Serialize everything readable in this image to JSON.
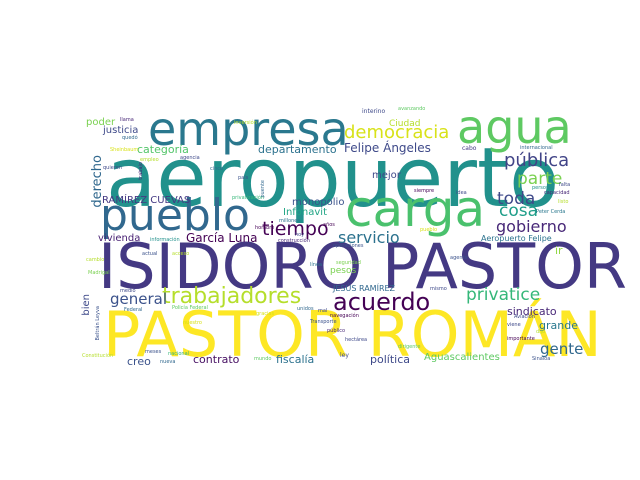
{
  "words": [
    {
      "text": "aeropuerto",
      "color": "#21918c"
    },
    {
      "text": "ISIDORO PASTOR",
      "color": "#443983"
    },
    {
      "text": "PASTOR ROMÁN",
      "color": "#fde725"
    },
    {
      "text": "empresa",
      "color": "#2a788e"
    },
    {
      "text": "agua",
      "color": "#5ec962"
    },
    {
      "text": "carga",
      "color": "#4ac16d"
    },
    {
      "text": "pueblo",
      "color": "#31688e"
    },
    {
      "text": "trabajadores",
      "color": "#b5de2b"
    },
    {
      "text": "acuerdo",
      "color": "#440154"
    },
    {
      "text": "democracia",
      "color": "#d8e219"
    },
    {
      "text": "privatice",
      "color": "#35b779"
    },
    {
      "text": "tiempo",
      "color": "#440154"
    },
    {
      "text": "pública",
      "color": "#414487"
    },
    {
      "text": "parte",
      "color": "#7ad151"
    },
    {
      "text": "toda",
      "color": "#3e4989"
    },
    {
      "text": "cosa",
      "color": "#1f9e89"
    },
    {
      "text": "gobierno",
      "color": "#482878"
    },
    {
      "text": "servicio",
      "color": "#2c728e"
    },
    {
      "text": "general",
      "color": "#3b528b"
    },
    {
      "text": "gente",
      "color": "#31688e"
    },
    {
      "text": "García Luna",
      "color": "#440154"
    },
    {
      "text": "Felipe Ángeles",
      "color": "#3e4989"
    },
    {
      "text": "departamento",
      "color": "#2c728e"
    },
    {
      "text": "categoría",
      "color": "#52c569"
    },
    {
      "text": "justicia",
      "color": "#3e4989"
    },
    {
      "text": "poder",
      "color": "#7ad151"
    },
    {
      "text": "derecho",
      "color": "#31688e"
    },
    {
      "text": "RAMÍREZ CUEVAS",
      "color": "#443983"
    },
    {
      "text": "vivienda",
      "color": "#482173"
    },
    {
      "text": "Infonavit",
      "color": "#21a585"
    },
    {
      "text": "monopolio",
      "color": "#3b528b"
    },
    {
      "text": "mejor",
      "color": "#3e4989"
    },
    {
      "text": "Ciudad",
      "color": "#b5de2b"
    },
    {
      "text": "sindicato",
      "color": "#482878"
    },
    {
      "text": "grande",
      "color": "#2a788e"
    },
    {
      "text": "ir",
      "color": "#90d743"
    },
    {
      "text": "contrato",
      "color": "#471063"
    },
    {
      "text": "fiscalía",
      "color": "#2c728e"
    },
    {
      "text": "política",
      "color": "#3e4989"
    },
    {
      "text": "Aguascalientes",
      "color": "#5ec962"
    },
    {
      "text": "creo",
      "color": "#3b528b"
    },
    {
      "text": "pesos",
      "color": "#7ad151"
    },
    {
      "text": "JESÚS RAMÍREZ",
      "color": "#31688e"
    },
    {
      "text": "bien",
      "color": "#3e4989"
    },
    {
      "text": "Aeropuerto Felipe",
      "color": "#2c728e"
    },
    {
      "text": "avanzando",
      "color": "#5ec962"
    },
    {
      "text": "interino",
      "color": "#3e4989"
    },
    {
      "text": "cabo",
      "color": "#443983"
    },
    {
      "text": "internacional",
      "color": "#31688e"
    },
    {
      "text": "llama",
      "color": "#482878"
    },
    {
      "text": "quedó",
      "color": "#31688e"
    },
    {
      "text": "agencia",
      "color": "#3e4989"
    },
    {
      "text": "siempre",
      "color": "#440154"
    },
    {
      "text": "persona",
      "color": "#21918c"
    },
    {
      "text": "falta",
      "color": "#3e4989"
    },
    {
      "text": "capacidad",
      "color": "#482878"
    },
    {
      "text": "Peter Cerda",
      "color": "#2a788e"
    },
    {
      "text": "listo",
      "color": "#b5de2b"
    },
    {
      "text": "hombre",
      "color": "#440154"
    },
    {
      "text": "construcción",
      "color": "#482878"
    },
    {
      "text": "millones",
      "color": "#2c728e"
    },
    {
      "text": "operaciones",
      "color": "#3b528b"
    },
    {
      "text": "información",
      "color": "#21918c"
    },
    {
      "text": "actual",
      "color": "#3b528b"
    },
    {
      "text": "seguridad",
      "color": "#7ad151"
    },
    {
      "text": "mismo",
      "color": "#3e4989"
    },
    {
      "text": "agente",
      "color": "#3b528b"
    },
    {
      "text": "Aviación",
      "color": "#3e4989"
    },
    {
      "text": "dijo",
      "color": "#b5de2b"
    },
    {
      "text": "viene",
      "color": "#3e4989"
    },
    {
      "text": "importante",
      "color": "#440154"
    },
    {
      "text": "Sinaloa",
      "color": "#3b528b"
    },
    {
      "text": "Policía Federal",
      "color": "#5ec962"
    },
    {
      "text": "Federal",
      "color": "#31688e"
    },
    {
      "text": "Transporte",
      "color": "#3b528b"
    },
    {
      "text": "navegación",
      "color": "#440154"
    },
    {
      "text": "público",
      "color": "#482878"
    },
    {
      "text": "hectárea",
      "color": "#3e4989"
    },
    {
      "text": "dirigente",
      "color": "#5ec962"
    },
    {
      "text": "ley",
      "color": "#3e4989"
    },
    {
      "text": "nueva",
      "color": "#31688e"
    },
    {
      "text": "nacional",
      "color": "#35b779"
    },
    {
      "text": "meses",
      "color": "#3b528b"
    },
    {
      "text": "Constitución",
      "color": "#b5de2b"
    },
    {
      "text": "medio",
      "color": "#3e4989"
    },
    {
      "text": "Madrigal",
      "color": "#7ad151"
    },
    {
      "text": "cambio",
      "color": "#b5de2b"
    },
    {
      "text": "Beltrán Leyva",
      "color": "#3b528b"
    },
    {
      "text": "trabajo",
      "color": "#482878"
    },
    {
      "text": "quieren",
      "color": "#3e4989"
    },
    {
      "text": "Sheinbaum",
      "color": "#d8e219"
    },
    {
      "text": "inversión",
      "color": "#b5de2b"
    },
    {
      "text": "país",
      "color": "#3b528b"
    },
    {
      "text": "cinco",
      "color": "#31688e"
    },
    {
      "text": "privatización",
      "color": "#35b779"
    },
    {
      "text": "empleo",
      "color": "#b5de2b"
    },
    {
      "text": "puente",
      "color": "#31688e"
    },
    {
      "text": "mal",
      "color": "#3e4989"
    },
    {
      "text": "años",
      "color": "#440154"
    },
    {
      "text": "línea",
      "color": "#2c728e"
    },
    {
      "text": "pueblo",
      "color": "#d8e219"
    },
    {
      "text": "idea",
      "color": "#3e4989"
    },
    {
      "text": "unidos",
      "color": "#31688e"
    },
    {
      "text": "nuestro",
      "color": "#d8e219"
    },
    {
      "text": "mundo",
      "color": "#5ec962"
    },
    {
      "text": "acceso",
      "color": "#b5de2b"
    },
    {
      "text": "gracias",
      "color": "#d8e219"
    },
    {
      "text": "hoy",
      "color": "#3e4989"
    }
  ]
}
